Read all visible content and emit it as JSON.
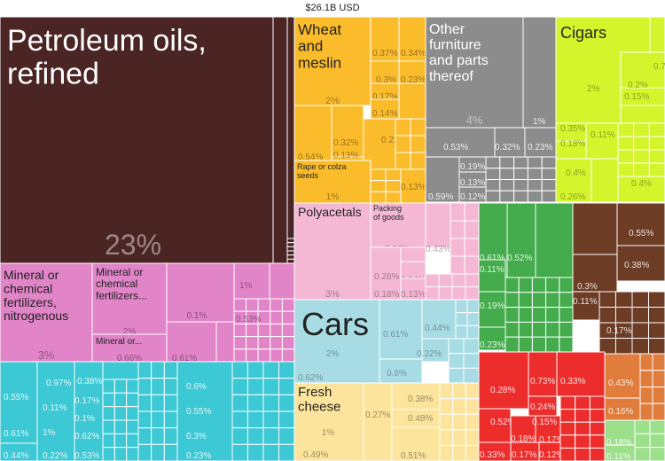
{
  "header": {
    "total": "$26.1B USD"
  },
  "chart_data": {
    "type": "treemap",
    "title": "$26.1B USD",
    "groups": [
      {
        "name": "Petroleum oils, refined",
        "value_label": "23%",
        "color": "#4b2424"
      },
      {
        "name": "Mineral or chemical fertilizers, nitrogenous",
        "value_label": "3%",
        "color": "#e184c8"
      },
      {
        "name": "Mineral or chemical fertilizers...",
        "value_label": "2%",
        "color": "#e184c8"
      },
      {
        "name": "Mineral or...",
        "value_label": "0.66%",
        "color": "#e184c8"
      },
      {
        "name": "Wheat and meslin",
        "value_label": "2%",
        "color": "#fbbc2c"
      },
      {
        "name": "Rape or colza seeds",
        "value_label": "1%",
        "color": "#fbbc2c"
      },
      {
        "name": "Other furniture and parts thereof",
        "value_label": "4%",
        "color": "#8c8c8c"
      },
      {
        "name": "Cigars",
        "value_label": "2%",
        "color": "#d4f42c"
      },
      {
        "name": "Polyacetals",
        "value_label": "3%",
        "color": "#f4b8d4"
      },
      {
        "name": "Packing of goods",
        "value_label": "0.96%",
        "color": "#f4b8d4"
      },
      {
        "name": "Cars",
        "value_label": "2%",
        "color": "#a8dce4"
      },
      {
        "name": "Fresh cheese",
        "value_label": "1%",
        "color": "#fce49c"
      }
    ],
    "small_value_labels": [
      "0.37%",
      "0.34%",
      "0.3%",
      "0.23%",
      "0.17%",
      "0.14%",
      "0.32%",
      "0.22%",
      "0.54%",
      "0.13%",
      "0.13%",
      "1%",
      "0.53%",
      "0.32%",
      "0.23%",
      "0.19%",
      "0.13%",
      "0.59%",
      "0.12%",
      "0.79%",
      "0.2%",
      "0.15%",
      "0.35%",
      "0.11%",
      "0.18%",
      "0.4%",
      "0.26%",
      "0.4%",
      "0.43%",
      "0.28%",
      "0.14%",
      "0.14%",
      "0.18%",
      "0.13%",
      "0.61%",
      "0.52%",
      "0.11%",
      "0.19%",
      "0.23%",
      "0.55%",
      "0.97%",
      "0.38%",
      "0.3%",
      "0.11%",
      "0.17%",
      "0.31%",
      "1%",
      "0.1%",
      "0.53%",
      "0.61%",
      "0.44%",
      "0.22%",
      "0.62%",
      "0.6%",
      "0.55%",
      "0.3%",
      "0.23%",
      "0.28%",
      "0.21%",
      "0.18%",
      "0.49%",
      "0.28%",
      "0.17%",
      "0.3%",
      "0.27%",
      "0.17%",
      "0.41%",
      "0.37%",
      "0.32%",
      "0.27%",
      "0.38%",
      "0.48%",
      "0.35%",
      "0.49%",
      "0.51%",
      "0.73%",
      "0.41%",
      "0.33%",
      "0.24%",
      "0.52%",
      "0.15%",
      "0.18%",
      "0.17%",
      "0.33%",
      "0.17%",
      "0.12%",
      "0.43%",
      "0.16%",
      "0.18%",
      "0.11%"
    ],
    "colors": {
      "mineral": "#4b2424",
      "chemicals": "#e184c8",
      "vegetable": "#fbbc2c",
      "misc": "#8c8c8c",
      "foodstuffs": "#d4f42c",
      "plastics": "#f4b8d4",
      "transport": "#a8dce4",
      "animal": "#fce49c",
      "machines": "#3cc8d4",
      "metals": "#ed2c2c",
      "textiles": "#44ac4c",
      "wood": "#6c3c24",
      "paper": "#e07c3c",
      "stone": "#9ce08c"
    }
  }
}
